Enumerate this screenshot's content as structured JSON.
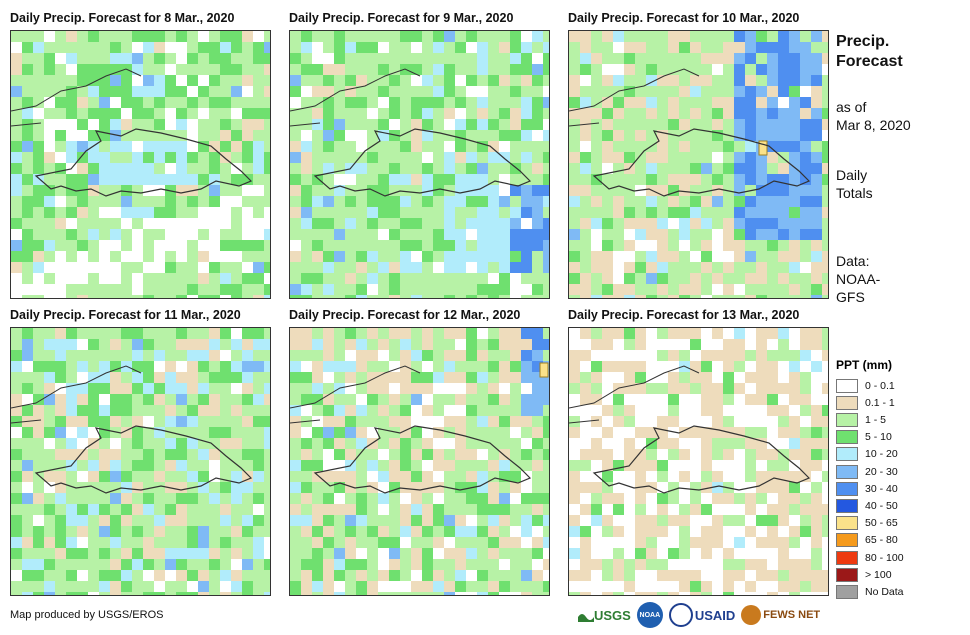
{
  "panels": [
    {
      "title": "Daily Precip. Forecast for 8 Mar., 2020"
    },
    {
      "title": "Daily Precip. Forecast for 9 Mar., 2020"
    },
    {
      "title": "Daily Precip. Forecast for 10 Mar., 2020"
    },
    {
      "title": "Daily Precip. Forecast for 11 Mar., 2020"
    },
    {
      "title": "Daily Precip. Forecast for 12 Mar., 2020"
    },
    {
      "title": "Daily Precip. Forecast for 13 Mar., 2020"
    }
  ],
  "side": {
    "title_line1": "Precip.",
    "title_line2": "Forecast",
    "asof_line1": "as of",
    "asof_line2": "Mar 8, 2020",
    "daily_line1": "Daily",
    "daily_line2": "Totals",
    "data_line1": "Data:",
    "data_line2": "NOAA-",
    "data_line3": "GFS"
  },
  "legend": {
    "title": "PPT (mm)",
    "items": [
      {
        "label": "0 - 0.1",
        "color": "#ffffff"
      },
      {
        "label": "0.1 - 1",
        "color": "#eedcbc"
      },
      {
        "label": "1 - 5",
        "color": "#b7f2a6"
      },
      {
        "label": "5 - 10",
        "color": "#6fe06f"
      },
      {
        "label": "10 - 20",
        "color": "#b1ecfb"
      },
      {
        "label": "20 - 30",
        "color": "#7fbaf5"
      },
      {
        "label": "30 - 40",
        "color": "#4f8ff0"
      },
      {
        "label": "40 - 50",
        "color": "#2458e0"
      },
      {
        "label": "50 - 65",
        "color": "#fbe28a"
      },
      {
        "label": "65 - 80",
        "color": "#f59a1c"
      },
      {
        "label": "80 - 100",
        "color": "#ee3a10"
      },
      {
        "label": "> 100",
        "color": "#9b1818"
      },
      {
        "label": "No Data",
        "color": "#a0a0a0"
      }
    ]
  },
  "credit": "Map produced by USGS/EROS",
  "logos": {
    "usgs": "USGS",
    "usaid": "USAID",
    "fewsnet": "FEWS NET",
    "noaa": "NOAA"
  }
}
